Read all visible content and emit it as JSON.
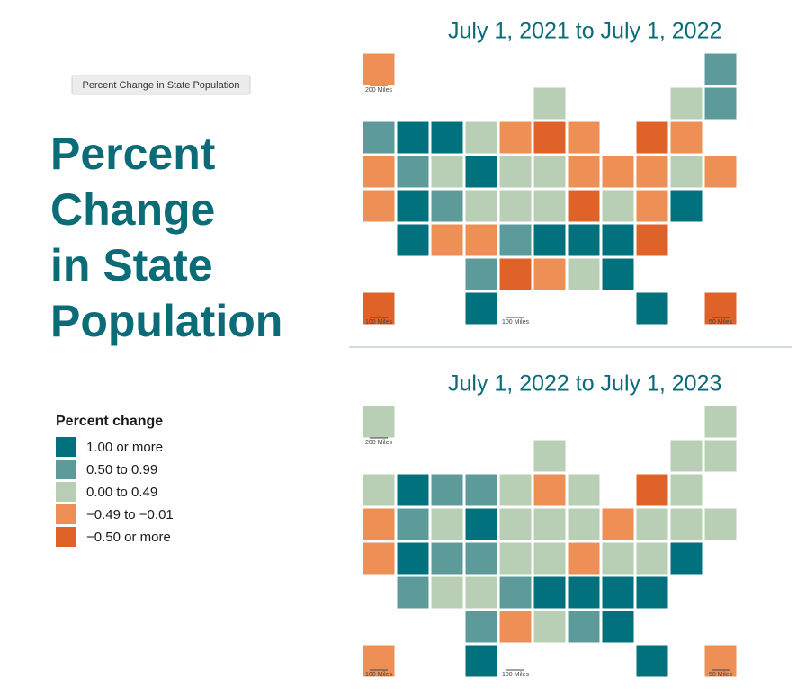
{
  "header": {
    "tooltip": "Percent Change in State Population",
    "title_lines": [
      "Percent",
      "Change",
      "in State",
      "Population"
    ]
  },
  "legend": {
    "title": "Percent change",
    "items": [
      {
        "label": "1.00 or more",
        "color": "#00717d"
      },
      {
        "label": "0.50 to 0.99",
        "color": "#5c9b99"
      },
      {
        "label": "0.00 to 0.49",
        "color": "#b9cfb5"
      },
      {
        "label": "−0.49 to −0.01",
        "color": "#ee9056"
      },
      {
        "label": "−0.50 or more",
        "color": "#df6328"
      }
    ]
  },
  "maps": [
    {
      "title": "July 1, 2021 to July 1, 2022",
      "scales": [
        "200 Miles",
        "100 Miles",
        "100 Miles",
        "50 Miles"
      ],
      "states": [
        3,
        1,
        3,
        3,
        1,
        0,
        0,
        2,
        0,
        0,
        1,
        3,
        2,
        0,
        2,
        3,
        1,
        0,
        3,
        2,
        2,
        1,
        4,
        2,
        4,
        3,
        2,
        3,
        2,
        0,
        3,
        2,
        0,
        0,
        0,
        0,
        2,
        4,
        3,
        4,
        2,
        1,
        1,
        3,
        3,
        2,
        3,
        0,
        3,
        4,
        4,
        4
      ]
    },
    {
      "title": "July 1, 2022 to July 1, 2023",
      "scales": [
        "200 Miles",
        "100 Miles",
        "100 Miles",
        "50 Miles"
      ],
      "states": [
        2,
        2,
        3,
        3,
        1,
        0,
        1,
        2,
        0,
        1,
        1,
        2,
        1,
        0,
        1,
        2,
        1,
        0,
        2,
        2,
        2,
        1,
        3,
        2,
        3,
        2,
        2,
        2,
        2,
        0,
        2,
        1,
        0,
        0,
        0,
        0,
        2,
        3,
        3,
        4,
        2,
        2,
        2,
        2,
        2,
        2,
        2,
        0,
        2,
        0,
        3,
        3
      ]
    }
  ]
}
